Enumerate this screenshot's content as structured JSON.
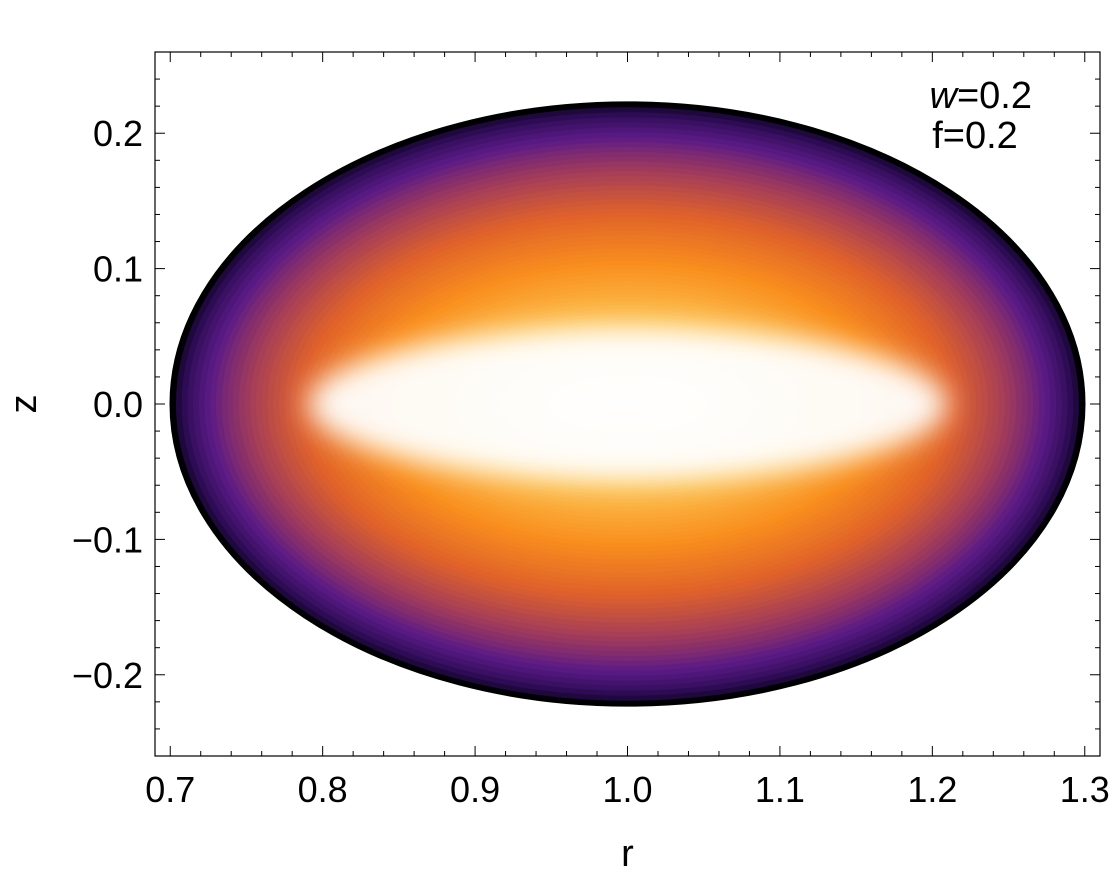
{
  "chart_data": {
    "type": "heatmap",
    "title": "",
    "xlabel": "r",
    "ylabel": "z",
    "xlim": [
      0.69,
      1.31
    ],
    "ylim": [
      -0.26,
      0.26
    ],
    "x_ticks": [
      "0.7",
      "0.8",
      "0.9",
      "1.0",
      "1.1",
      "1.2",
      "1.3"
    ],
    "x_tick_values": [
      0.7,
      0.8,
      0.9,
      1.0,
      1.1,
      1.2,
      1.3
    ],
    "y_ticks": [
      "0.2",
      "0.1",
      "0.0",
      "−0.1",
      "−0.2"
    ],
    "y_tick_values": [
      0.2,
      0.1,
      0.0,
      -0.1,
      -0.2
    ],
    "x_minor_step": 0.02,
    "y_minor_step": 0.02,
    "domain": {
      "center_r": 1.0,
      "center_z": 0.0,
      "semi_axis_r": 0.3,
      "semi_axis_z": 0.223
    },
    "hot_core": {
      "r_min": 0.79,
      "r_max": 1.21,
      "z_half_height": 0.035
    },
    "colormap": [
      "#000004",
      "#2a0b52",
      "#5b1a86",
      "#a33c5a",
      "#e0622a",
      "#f98e1e",
      "#fcbc4a",
      "#ffe7a8",
      "#ffffff"
    ],
    "grid": false,
    "legend": "none",
    "annotations": [
      {
        "var": "w",
        "eq": "=0.2"
      },
      {
        "var": "",
        "eq": "f=0.2"
      }
    ]
  }
}
